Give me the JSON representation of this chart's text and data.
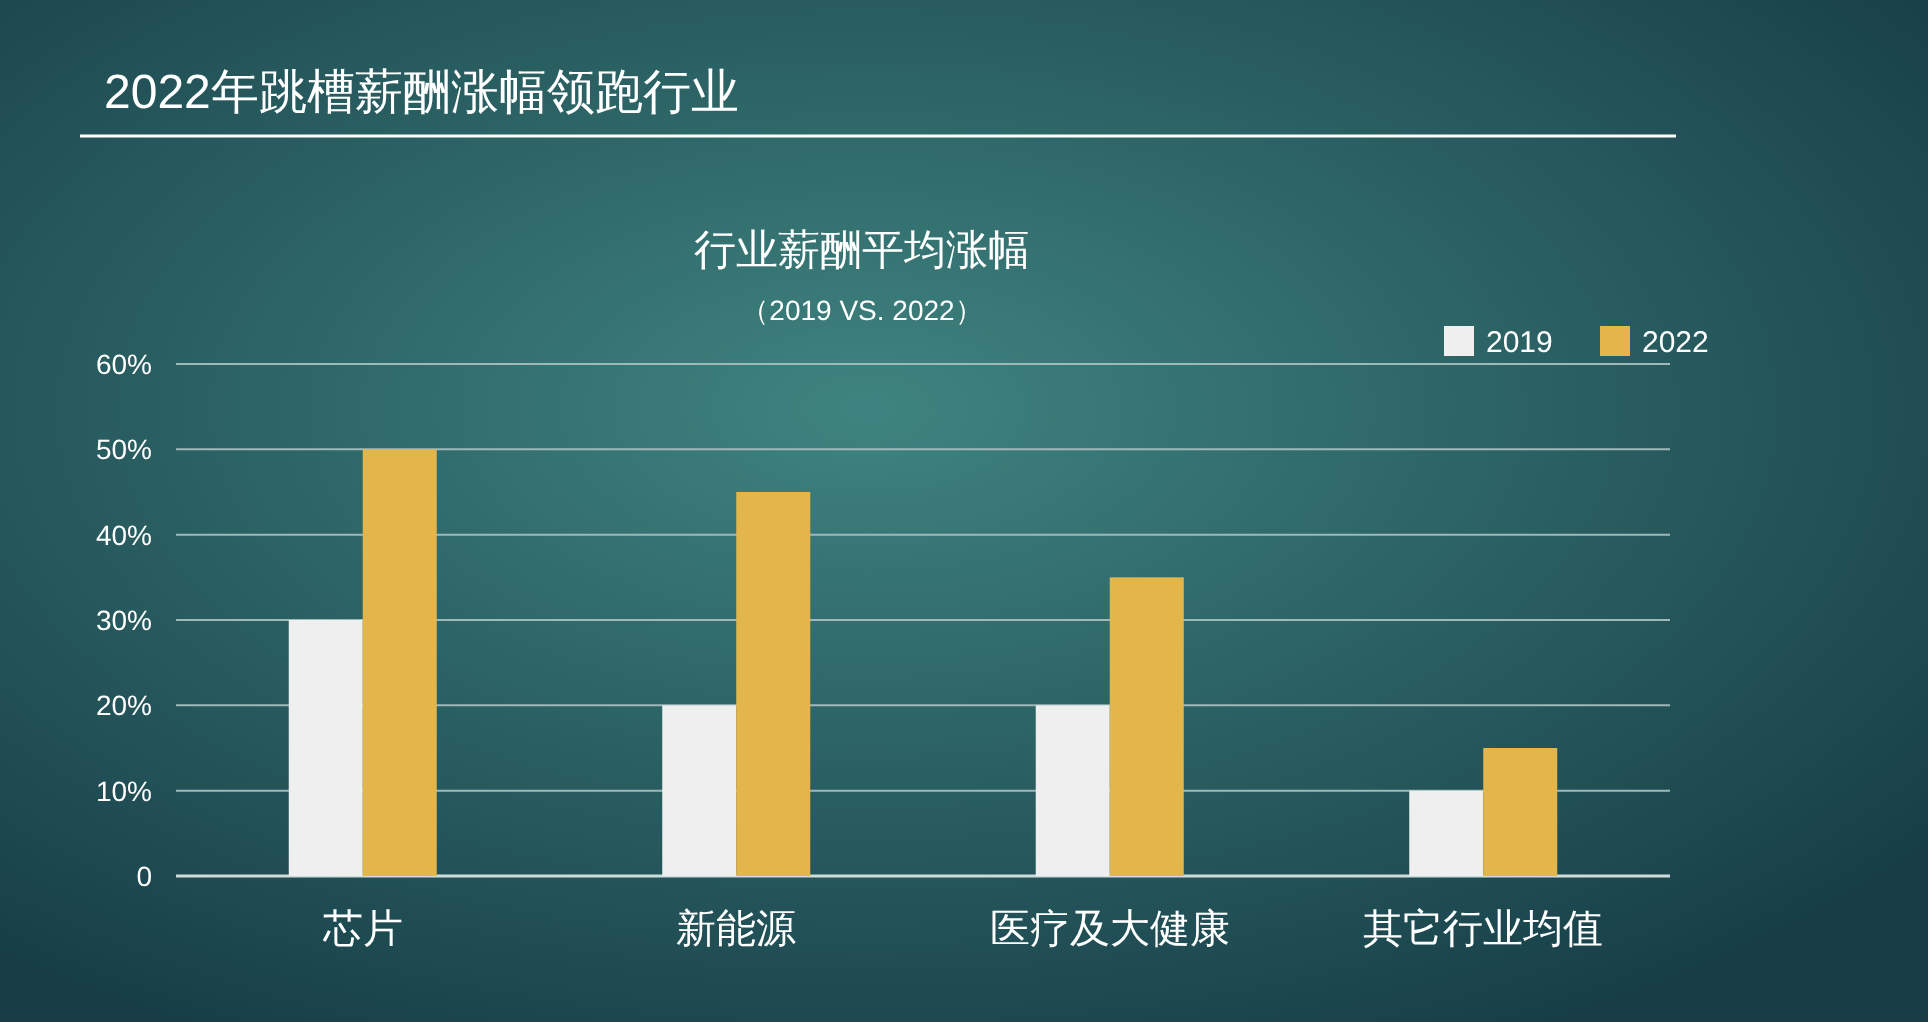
{
  "chart_data": {
    "type": "bar",
    "title": "2022年跳槽薪酬涨幅领跑行业",
    "subtitle": "行业薪酬平均涨幅",
    "annotations": [
      "（2019 VS. 2022）"
    ],
    "categories": [
      "芯片",
      "新能源",
      "医疗及大健康",
      "其它行业均值"
    ],
    "series": [
      {
        "name": "2019",
        "color": "#efefef",
        "values": [
          30,
          20,
          20,
          10
        ]
      },
      {
        "name": "2022",
        "color": "#e3b64c",
        "values": [
          50,
          45,
          35,
          15
        ]
      }
    ],
    "ylim": [
      0,
      60
    ],
    "yticks": [
      {
        "value": 0,
        "label": "0"
      },
      {
        "value": 10,
        "label": "10%"
      },
      {
        "value": 20,
        "label": "20%"
      },
      {
        "value": 30,
        "label": "30%"
      },
      {
        "value": 40,
        "label": "40%"
      },
      {
        "value": 50,
        "label": "50%"
      },
      {
        "value": 60,
        "label": "60%"
      }
    ],
    "grid": "y",
    "legend": "top right"
  }
}
